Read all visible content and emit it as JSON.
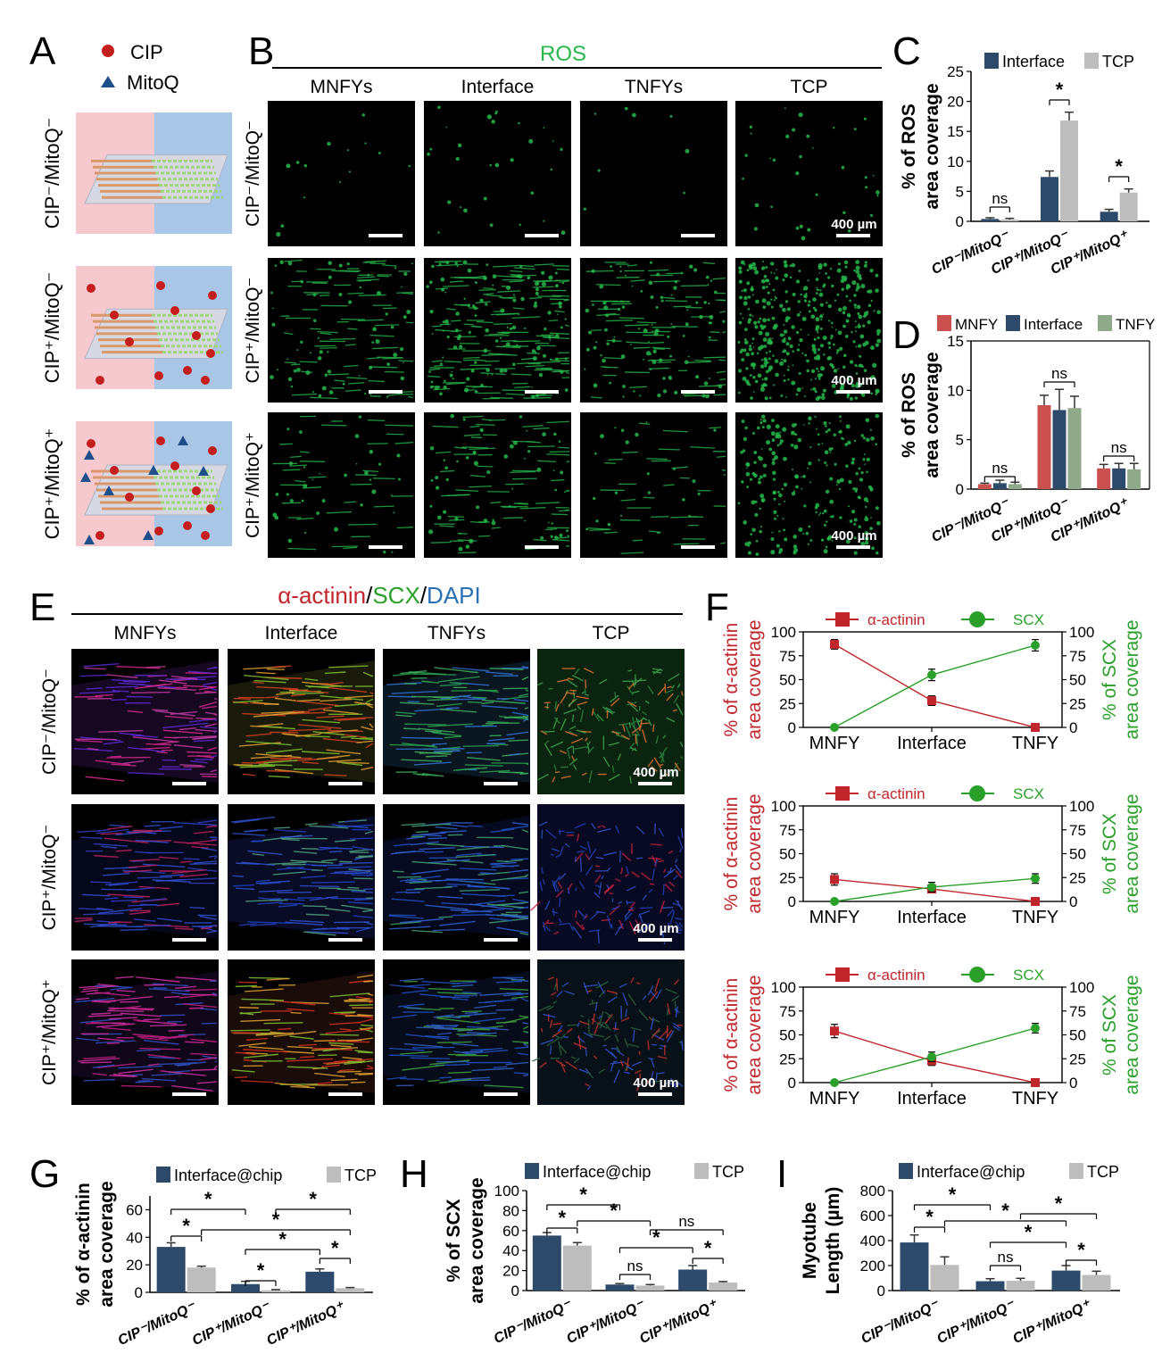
{
  "panels": {
    "A": "A",
    "B": "B",
    "C": "C",
    "D": "D",
    "E": "E",
    "F": "F",
    "G": "G",
    "H": "H",
    "I": "I"
  },
  "colors": {
    "interface": "#2e4a6b",
    "tcp": "#bdbdbd",
    "mnfy": "#c9504f",
    "tnfy": "#8fa98a",
    "actinin": "#c0262c",
    "scx": "#2aa02a",
    "ros": "#25b84a",
    "dapi": "#2b6fb5"
  },
  "panelA": {
    "legend": [
      {
        "label": "CIP",
        "icon": "red-circle-icon"
      },
      {
        "label": "MitoQ",
        "icon": "blue-triangle-icon"
      }
    ],
    "row_labels": [
      "CIP⁻/MitoQ⁻",
      "CIP⁺/MitoQ⁻",
      "CIP⁺/MitoQ⁺"
    ]
  },
  "panelB": {
    "title": "ROS",
    "columns": [
      "MNFYs",
      "Interface",
      "TNFYs",
      "TCP"
    ],
    "row_labels": [
      "CIP⁻/MitoQ⁻",
      "CIP⁺/MitoQ⁻",
      "CIP⁺/MitoQ⁺"
    ],
    "scale_label": "400 µm"
  },
  "panelE": {
    "title_parts": [
      "α-actinin",
      "/",
      "SCX",
      "/",
      "DAPI"
    ],
    "columns": [
      "MNFYs",
      "Interface",
      "TNFYs",
      "TCP"
    ],
    "row_labels": [
      "CIP⁻/MitoQ⁻",
      "CIP⁺/MitoQ⁻",
      "CIP⁺/MitoQ⁺"
    ],
    "scale_label": "400 µm"
  },
  "chart_data": [
    {
      "panel": "C",
      "type": "bar",
      "ylabel": "% of ROS area coverage",
      "ylim": [
        0,
        25
      ],
      "yticks": [
        "0",
        "5",
        "10",
        "15",
        "20",
        "25"
      ],
      "categories": [
        "CIP⁻/MitoQ⁻",
        "CIP⁺/MitoQ⁻",
        "CIP⁺/MitoQ⁺"
      ],
      "series": [
        {
          "name": "Interface",
          "values": [
            0.4,
            7.4,
            1.6
          ],
          "errors": [
            0.2,
            1.0,
            0.4
          ]
        },
        {
          "name": "TCP",
          "values": [
            0.3,
            16.8,
            4.8
          ],
          "errors": [
            0.2,
            1.4,
            0.6
          ]
        }
      ],
      "annotations": [
        "ns",
        "*",
        "*"
      ]
    },
    {
      "panel": "D",
      "type": "bar",
      "ylabel": "% of ROS area coverage",
      "ylim": [
        0,
        15
      ],
      "yticks": [
        "0",
        "5",
        "10",
        "15"
      ],
      "categories": [
        "CIP⁻/MitoQ⁻",
        "CIP⁺/MitoQ⁻",
        "CIP⁺/MitoQ⁺"
      ],
      "series": [
        {
          "name": "MNFY",
          "values": [
            0.5,
            8.5,
            2.1
          ],
          "errors": [
            0.1,
            1.0,
            0.4
          ]
        },
        {
          "name": "Interface",
          "values": [
            0.6,
            8.0,
            2.1
          ],
          "errors": [
            0.3,
            2.1,
            0.5
          ]
        },
        {
          "name": "TNFY",
          "values": [
            0.5,
            8.2,
            2.0
          ],
          "errors": [
            0.2,
            1.2,
            0.6
          ]
        }
      ],
      "annotations": [
        "ns",
        "ns",
        "ns"
      ]
    },
    {
      "panel": "F1",
      "type": "line",
      "categories": [
        "MNFY",
        "Interface",
        "TNFY"
      ],
      "ylabel_left": "% of α-actinin area coverage",
      "ylabel_right": "% of SCX area coverage",
      "ylim": [
        0,
        100
      ],
      "yticks": [
        "0",
        "25",
        "50",
        "75",
        "100"
      ],
      "series": [
        {
          "name": "α-actinin",
          "values": [
            87,
            28,
            0
          ],
          "errors": [
            5,
            5,
            0
          ]
        },
        {
          "name": "SCX",
          "values": [
            0,
            55,
            86
          ],
          "errors": [
            0,
            6,
            6
          ]
        }
      ]
    },
    {
      "panel": "F2",
      "type": "line",
      "categories": [
        "MNFY",
        "Interface",
        "TNFY"
      ],
      "ylabel_left": "% of α-actinin area coverage",
      "ylabel_right": "% of SCX area coverage",
      "ylim": [
        0,
        100
      ],
      "yticks": [
        "0",
        "25",
        "50",
        "75",
        "100"
      ],
      "series": [
        {
          "name": "α-actinin",
          "values": [
            23,
            13,
            0
          ],
          "errors": [
            6,
            4,
            0
          ]
        },
        {
          "name": "SCX",
          "values": [
            0,
            15,
            24
          ],
          "errors": [
            0,
            5,
            5
          ]
        }
      ]
    },
    {
      "panel": "F3",
      "type": "line",
      "categories": [
        "MNFY",
        "Interface",
        "TNFY"
      ],
      "ylabel_left": "% of α-actinin area coverage",
      "ylabel_right": "% of SCX area coverage",
      "ylim": [
        0,
        100
      ],
      "yticks": [
        "0",
        "25",
        "50",
        "75",
        "100"
      ],
      "series": [
        {
          "name": "α-actinin",
          "values": [
            54,
            23,
            0
          ],
          "errors": [
            7,
            5,
            0
          ]
        },
        {
          "name": "SCX",
          "values": [
            0,
            27,
            57
          ],
          "errors": [
            0,
            5,
            5
          ]
        }
      ]
    },
    {
      "panel": "G",
      "type": "bar",
      "ylabel": "% of α-actinin area coverage",
      "ylim": [
        0,
        70
      ],
      "yticks": [
        "0",
        "20",
        "40",
        "60"
      ],
      "categories": [
        "CIP⁻/MitoQ⁻",
        "CIP⁺/MitoQ⁻",
        "CIP⁺/MitoQ⁺"
      ],
      "series": [
        {
          "name": "Interface@chip",
          "values": [
            33,
            6,
            15
          ],
          "errors": [
            3,
            2,
            2
          ]
        },
        {
          "name": "TCP",
          "values": [
            18,
            1.5,
            3
          ],
          "errors": [
            1,
            0.5,
            0.5
          ]
        }
      ],
      "annotations": [
        "*",
        "*",
        "*",
        "*",
        "*",
        "*",
        "*"
      ]
    },
    {
      "panel": "H",
      "type": "bar",
      "ylabel": "% of SCX area coverage",
      "ylim": [
        0,
        100
      ],
      "yticks": [
        "0",
        "20",
        "40",
        "60",
        "80",
        "100"
      ],
      "categories": [
        "CIP⁻/MitoQ⁻",
        "CIP⁺/MitoQ⁻",
        "CIP⁺/MitoQ⁺"
      ],
      "series": [
        {
          "name": "Interface@chip",
          "values": [
            55,
            6,
            21
          ],
          "errors": [
            3,
            1,
            4
          ]
        },
        {
          "name": "TCP",
          "values": [
            45,
            5,
            8
          ],
          "errors": [
            3,
            1,
            1
          ]
        }
      ],
      "annotations": [
        "*",
        "*",
        "*",
        "ns",
        "*",
        "ns",
        "*"
      ]
    },
    {
      "panel": "I",
      "type": "bar",
      "ylabel": "Myotube Length (µm)",
      "ylim": [
        0,
        800
      ],
      "yticks": [
        "0",
        "200",
        "400",
        "600",
        "800"
      ],
      "categories": [
        "CIP⁻/MitoQ⁻",
        "CIP⁺/MitoQ⁻",
        "CIP⁺/MitoQ⁺"
      ],
      "series": [
        {
          "name": "Interface@chip",
          "values": [
            385,
            75,
            160
          ],
          "errors": [
            60,
            20,
            40
          ]
        },
        {
          "name": "TCP",
          "values": [
            205,
            78,
            125
          ],
          "errors": [
            65,
            20,
            30
          ]
        }
      ],
      "annotations": [
        "*",
        "*",
        "*",
        "ns",
        "*",
        "*"
      ]
    }
  ]
}
